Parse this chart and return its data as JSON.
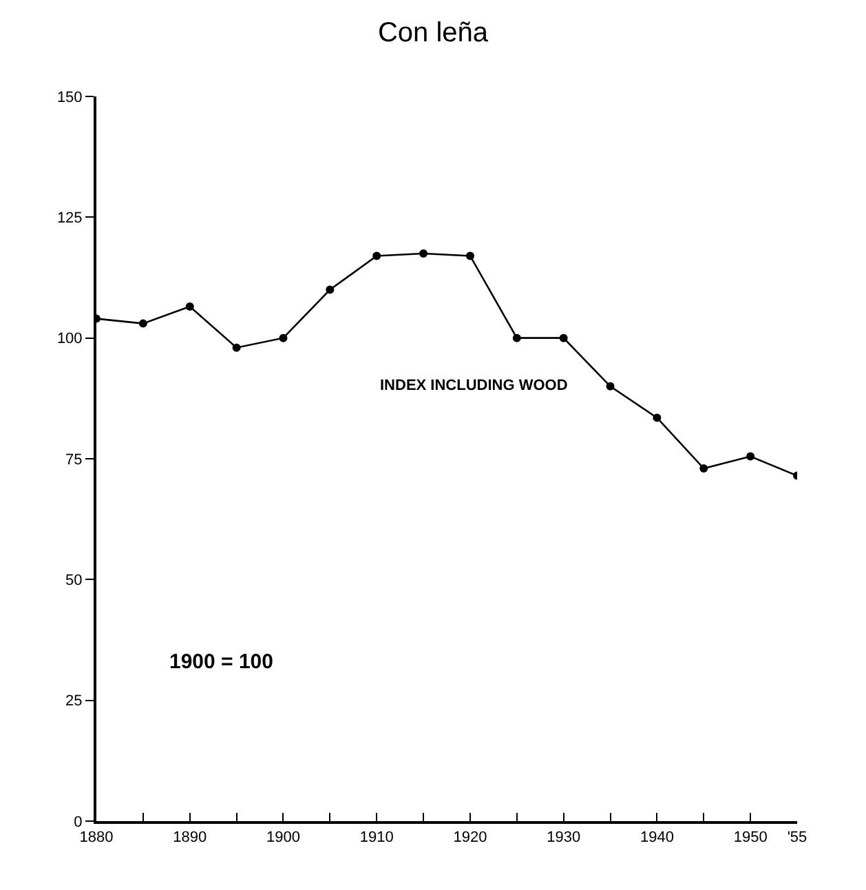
{
  "chart_data": {
    "type": "line",
    "title": "Con leña",
    "x": [
      1880,
      1885,
      1890,
      1895,
      1900,
      1905,
      1910,
      1915,
      1920,
      1925,
      1930,
      1935,
      1940,
      1945,
      1950,
      1955
    ],
    "series": [
      {
        "color": "#000000",
        "values": [
          104,
          103,
          106.5,
          98,
          100,
          110,
          117,
          117.5,
          117,
          100,
          100,
          90,
          83.5,
          73,
          75.5,
          71.5
        ]
      }
    ],
    "xlim": [
      1880,
      1955
    ],
    "xticks": [
      1880,
      {
        "value": 1885,
        "label": null
      },
      1890,
      {
        "value": 1895,
        "label": null
      },
      1900,
      {
        "value": 1905,
        "label": null
      },
      1910,
      {
        "value": 1915,
        "label": null
      },
      1920,
      {
        "value": 1925,
        "label": null
      },
      1930,
      {
        "value": 1935,
        "label": null
      },
      1940,
      {
        "value": 1945,
        "label": null
      },
      1950,
      {
        "value": 1955,
        "label": "'55"
      }
    ],
    "ylim": [
      0,
      150
    ],
    "yticks": [
      0,
      25,
      50,
      75,
      100,
      125,
      150
    ],
    "annotations": [
      "INDEX INCLUDING WOOD",
      "1900 = 100"
    ],
    "marker": "circle",
    "line_style": "solid",
    "grid": false,
    "legend": false
  }
}
